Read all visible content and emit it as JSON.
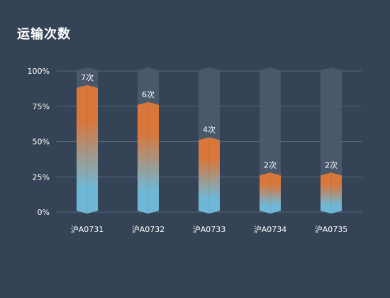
{
  "title": "运输次数",
  "colors": {
    "background": "#344356",
    "track": "#4b5b6e",
    "bar_top": "#d9773a",
    "bar_bottom": "#6fb7d6",
    "gridline": "#56677b",
    "axis_text": "#ffffff"
  },
  "chart_data": {
    "type": "bar",
    "title": "运输次数",
    "xlabel": "",
    "ylabel": "",
    "categories": [
      "沪A0731",
      "沪A0732",
      "沪A0733",
      "沪A0734",
      "沪A0735"
    ],
    "values": [
      7,
      6,
      4,
      2,
      2
    ],
    "percent_values": [
      88,
      76,
      51,
      26,
      26
    ],
    "data_labels": [
      "7次",
      "6次",
      "4次",
      "2次",
      "2次"
    ],
    "y_ticks": [
      "0%",
      "25%",
      "50%",
      "75%",
      "100%"
    ],
    "ylim": [
      0,
      100
    ],
    "grid": true,
    "legend": "none"
  }
}
